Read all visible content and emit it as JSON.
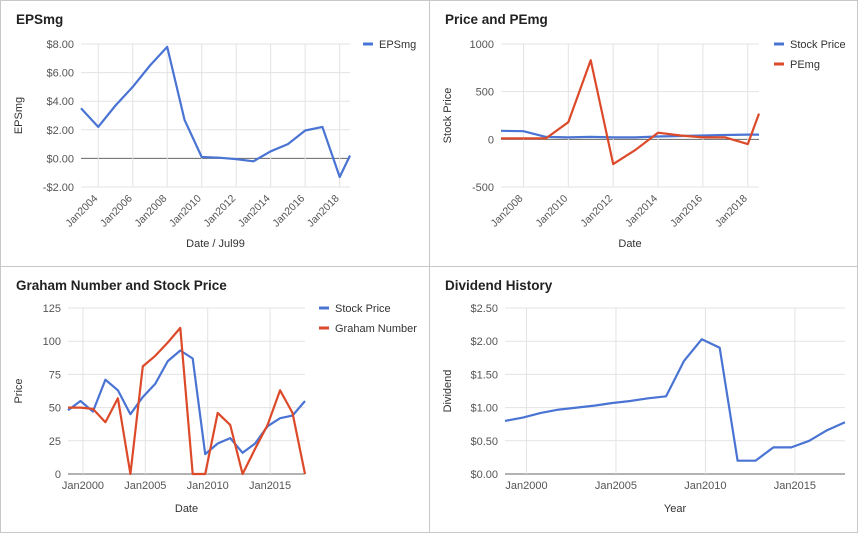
{
  "colors": {
    "blue": "#4a74d3",
    "red": "#dc4a2a",
    "grid": "#e3e3e3",
    "zero": "#666666",
    "tick": "#555555"
  },
  "chart_data": [
    {
      "type": "line",
      "title": "EPSmg",
      "xlabel": "Date / Jul99",
      "ylabel": "EPSmg",
      "ylim": [
        -2,
        8
      ],
      "xlim": [
        2003,
        2018.6
      ],
      "legend_position": "top-right",
      "y_ticks": [
        {
          "v": 8,
          "label": "$8.00"
        },
        {
          "v": 6,
          "label": "$6.00"
        },
        {
          "v": 4,
          "label": "$4.00"
        },
        {
          "v": 2,
          "label": "$2.00"
        },
        {
          "v": 0,
          "label": "$0.00"
        },
        {
          "v": -2,
          "label": "-$2.00"
        }
      ],
      "x_ticks": [
        {
          "v": 2004,
          "label": "Jan2004"
        },
        {
          "v": 2006,
          "label": "Jan2006"
        },
        {
          "v": 2008,
          "label": "Jan2008"
        },
        {
          "v": 2010,
          "label": "Jan2010"
        },
        {
          "v": 2012,
          "label": "Jan2012"
        },
        {
          "v": 2014,
          "label": "Jan2014"
        },
        {
          "v": 2016,
          "label": "Jan2016"
        },
        {
          "v": 2018,
          "label": "Jan2018"
        }
      ],
      "x_tick_rotate": true,
      "series": [
        {
          "name": "EPSmg",
          "color": "blue",
          "x": [
            2003,
            2004,
            2005,
            2006,
            2007,
            2008,
            2009,
            2010,
            2011,
            2012,
            2013,
            2014,
            2015,
            2016,
            2017,
            2018,
            2018.6
          ],
          "values": [
            3.5,
            2.2,
            3.7,
            5.0,
            6.5,
            7.8,
            2.7,
            0.1,
            0.05,
            -0.05,
            -0.2,
            0.5,
            1.0,
            1.95,
            2.2,
            -1.3,
            0.2
          ]
        }
      ]
    },
    {
      "type": "line",
      "title": "Price and PEmg",
      "xlabel": "Date",
      "ylabel": "Stock Price",
      "ylim": [
        -500,
        1000
      ],
      "xlim": [
        2007,
        2018.5
      ],
      "legend_position": "top-right",
      "y_ticks": [
        {
          "v": 1000,
          "label": "1000"
        },
        {
          "v": 500,
          "label": "500"
        },
        {
          "v": 0,
          "label": "0"
        },
        {
          "v": -500,
          "label": "-500"
        }
      ],
      "x_ticks": [
        {
          "v": 2008,
          "label": "Jan2008"
        },
        {
          "v": 2010,
          "label": "Jan2010"
        },
        {
          "v": 2012,
          "label": "Jan2012"
        },
        {
          "v": 2014,
          "label": "Jan2014"
        },
        {
          "v": 2016,
          "label": "Jan2016"
        },
        {
          "v": 2018,
          "label": "Jan2018"
        }
      ],
      "x_tick_rotate": true,
      "series": [
        {
          "name": "Stock Price",
          "color": "blue",
          "x": [
            2007,
            2008,
            2009,
            2010,
            2011,
            2012,
            2013,
            2014,
            2015,
            2016,
            2017,
            2018,
            2018.5
          ],
          "values": [
            90,
            85,
            25,
            20,
            25,
            20,
            20,
            30,
            35,
            40,
            45,
            50,
            50
          ]
        },
        {
          "name": "PEmg",
          "color": "red",
          "x": [
            2007,
            2008,
            2009,
            2010,
            2011,
            2012,
            2013,
            2014,
            2015,
            2016,
            2017,
            2018,
            2018.5
          ],
          "values": [
            10,
            10,
            10,
            180,
            830,
            -260,
            -110,
            70,
            40,
            20,
            20,
            -50,
            270
          ]
        }
      ]
    },
    {
      "type": "line",
      "title": "Graham Number and Stock Price",
      "xlabel": "Date",
      "ylabel": "Price",
      "ylim": [
        0,
        125
      ],
      "xlim": [
        1998.8,
        2017.8
      ],
      "legend_position": "top-right",
      "y_ticks": [
        {
          "v": 125,
          "label": "125"
        },
        {
          "v": 100,
          "label": "100"
        },
        {
          "v": 75,
          "label": "75"
        },
        {
          "v": 50,
          "label": "50"
        },
        {
          "v": 25,
          "label": "25"
        },
        {
          "v": 0,
          "label": "0"
        }
      ],
      "x_ticks": [
        {
          "v": 2000,
          "label": "Jan2000"
        },
        {
          "v": 2005,
          "label": "Jan2005"
        },
        {
          "v": 2010,
          "label": "Jan2010"
        },
        {
          "v": 2015,
          "label": "Jan2015"
        }
      ],
      "x_tick_rotate": false,
      "series": [
        {
          "name": "Stock Price",
          "color": "blue",
          "x": [
            1998.8,
            1999.8,
            2000.8,
            2001.8,
            2002.8,
            2003.8,
            2004.8,
            2005.8,
            2006.8,
            2007.8,
            2008.8,
            2009.8,
            2010.8,
            2011.8,
            2012.8,
            2013.8,
            2014.8,
            2015.8,
            2016.8,
            2017.8
          ],
          "values": [
            48,
            55,
            47,
            71,
            63,
            45,
            58,
            68,
            85,
            93,
            87,
            15,
            23,
            27,
            16,
            23,
            36,
            42,
            44,
            55
          ]
        },
        {
          "name": "Graham Number",
          "color": "red",
          "x": [
            1998.8,
            1999.8,
            2000.8,
            2001.8,
            2002.8,
            2003.8,
            2004.8,
            2005.8,
            2006.8,
            2007.8,
            2008.8,
            2009.8,
            2010.8,
            2011.8,
            2012.8,
            2013.8,
            2014.8,
            2015.8,
            2016.8,
            2017.8
          ],
          "values": [
            50,
            50,
            49,
            39,
            57,
            0,
            81,
            89,
            99,
            110,
            0,
            0,
            46,
            37,
            0,
            19,
            37,
            63,
            46,
            0
          ]
        }
      ]
    },
    {
      "type": "line",
      "title": "Dividend History",
      "xlabel": "Year",
      "ylabel": "Dividend",
      "ylim": [
        0,
        2.5
      ],
      "xlim": [
        1998.8,
        2017.8
      ],
      "legend_position": "none",
      "y_ticks": [
        {
          "v": 2.5,
          "label": "$2.50"
        },
        {
          "v": 2.0,
          "label": "$2.00"
        },
        {
          "v": 1.5,
          "label": "$1.50"
        },
        {
          "v": 1.0,
          "label": "$1.00"
        },
        {
          "v": 0.5,
          "label": "$0.50"
        },
        {
          "v": 0,
          "label": "$0.00"
        }
      ],
      "x_ticks": [
        {
          "v": 2000,
          "label": "Jan2000"
        },
        {
          "v": 2005,
          "label": "Jan2005"
        },
        {
          "v": 2010,
          "label": "Jan2010"
        },
        {
          "v": 2015,
          "label": "Jan2015"
        }
      ],
      "x_tick_rotate": false,
      "series": [
        {
          "name": "Dividend",
          "color": "blue",
          "x": [
            1998.8,
            1999.8,
            2000.8,
            2001.8,
            2002.8,
            2003.8,
            2004.8,
            2005.8,
            2006.8,
            2007.8,
            2008.8,
            2009.8,
            2010.8,
            2011.8,
            2012.8,
            2013.8,
            2014.8,
            2015.8,
            2016.8,
            2017.8
          ],
          "values": [
            0.8,
            0.85,
            0.92,
            0.97,
            1.0,
            1.03,
            1.07,
            1.1,
            1.14,
            1.17,
            1.7,
            2.03,
            1.9,
            0.2,
            0.2,
            0.4,
            0.4,
            0.5,
            0.66,
            0.78
          ]
        }
      ]
    }
  ]
}
